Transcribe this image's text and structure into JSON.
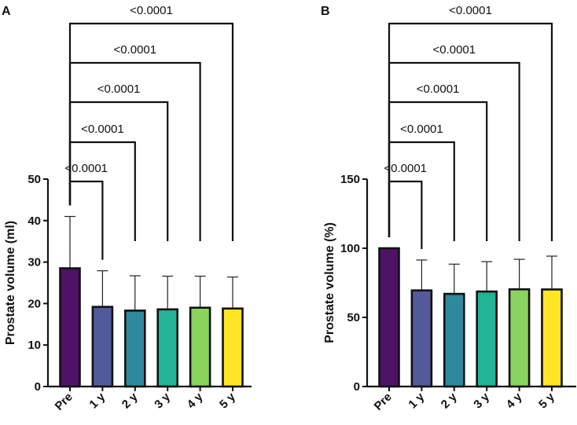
{
  "chart_data": [
    {
      "type": "bar",
      "panel": "A",
      "categories": [
        "Pre",
        "1 y",
        "2 y",
        "3 y",
        "4 y",
        "5 y"
      ],
      "values": [
        28.5,
        19.2,
        18.3,
        18.6,
        19.0,
        18.8
      ],
      "error_upper": [
        41.0,
        27.9,
        26.7,
        26.6,
        26.6,
        26.4
      ],
      "ylabel": "Prostate volume (ml)",
      "ylim": [
        0,
        50
      ],
      "yticks": [
        0,
        10,
        20,
        30,
        40,
        50
      ],
      "comparisons": [
        {
          "from": "Pre",
          "to": "1 y",
          "p": "<0.0001"
        },
        {
          "from": "Pre",
          "to": "2 y",
          "p": "<0.0001"
        },
        {
          "from": "Pre",
          "to": "3 y",
          "p": "<0.0001"
        },
        {
          "from": "Pre",
          "to": "4 y",
          "p": "<0.0001"
        },
        {
          "from": "Pre",
          "to": "5 y",
          "p": "<0.0001"
        }
      ]
    },
    {
      "type": "bar",
      "panel": "B",
      "categories": [
        "Pre",
        "1 y",
        "2 y",
        "3 y",
        "4 y",
        "5 y"
      ],
      "values": [
        100,
        69.5,
        67.0,
        68.7,
        70.3,
        70.2
      ],
      "error_upper": [
        100,
        91.5,
        88.5,
        90.3,
        92.0,
        94.3
      ],
      "ylabel": "Prostate volume (%)",
      "ylim": [
        0,
        150
      ],
      "yticks": [
        0,
        50,
        100,
        150
      ],
      "comparisons": [
        {
          "from": "Pre",
          "to": "1 y",
          "p": "<0.0001"
        },
        {
          "from": "Pre",
          "to": "2 y",
          "p": "<0.0001"
        },
        {
          "from": "Pre",
          "to": "3 y",
          "p": "<0.0001"
        },
        {
          "from": "Pre",
          "to": "4 y",
          "p": "<0.0001"
        },
        {
          "from": "Pre",
          "to": "5 y",
          "p": "<0.0001"
        }
      ]
    }
  ],
  "colors": [
    "#4e1266",
    "#535a9b",
    "#2f899e",
    "#22b494",
    "#88d45f",
    "#fde725"
  ]
}
